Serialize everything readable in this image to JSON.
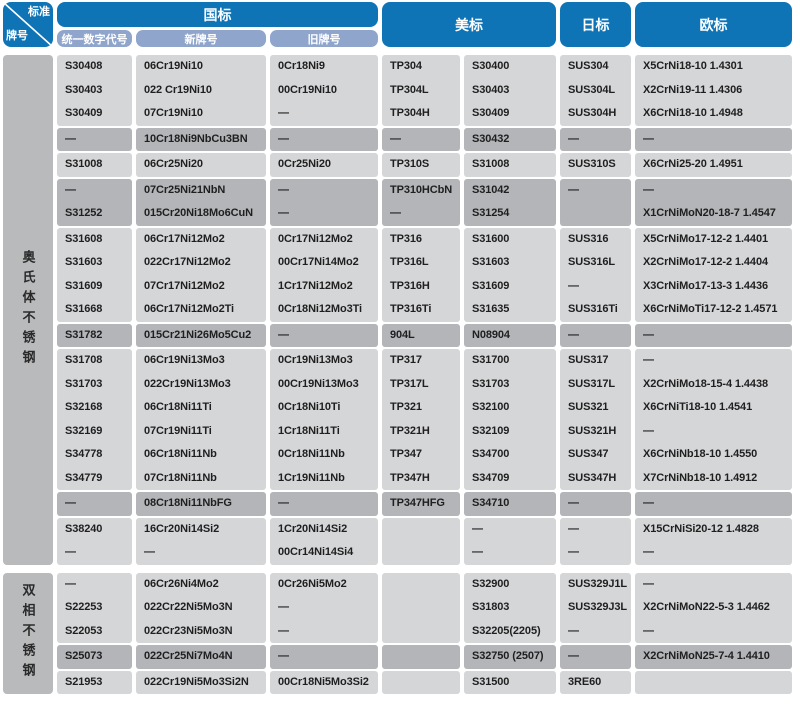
{
  "table": {
    "corner": {
      "top": "标准",
      "bottom": "牌号"
    },
    "group_headers": [
      {
        "label": "国标"
      },
      {
        "label": "美标"
      },
      {
        "label": "日标"
      },
      {
        "label": "欧标"
      }
    ],
    "sub_headers": [
      "统一数字代号",
      "新牌号",
      "旧牌号"
    ],
    "colors": {
      "header_blue": "#0e74b6",
      "subheader_blue": "#8fa5cc",
      "row_light": "#d5d6d8",
      "row_dark": "#b3b5b8",
      "label_gray": "#b8babc",
      "text": "#1f1f1f"
    },
    "sections": [
      {
        "label": "奥氏体不锈钢",
        "groups": [
          {
            "shade": "light",
            "rows": [
              [
                "S30408",
                "06Cr19Ni10",
                "0Cr18Ni9",
                "TP304",
                "S30400",
                "SUS304",
                "X5CrNi18-10 1.4301"
              ],
              [
                "S30403",
                "022 Cr19Ni10",
                "00Cr19Ni10",
                "TP304L",
                "S30403",
                "SUS304L",
                "X2CrNi19-11 1.4306"
              ],
              [
                "S30409",
                "07Cr19Ni10",
                "—",
                "TP304H",
                "S30409",
                "SUS304H",
                "X6CrNi18-10 1.4948"
              ]
            ]
          },
          {
            "shade": "dark",
            "rows": [
              [
                "—",
                "10Cr18Ni9NbCu3BN",
                "—",
                "—",
                "S30432",
                "—",
                "—"
              ]
            ]
          },
          {
            "shade": "light",
            "rows": [
              [
                "S31008",
                "06Cr25Ni20",
                "0Cr25Ni20",
                "TP310S",
                "S31008",
                "SUS310S",
                "X6CrNi25-20 1.4951"
              ]
            ]
          },
          {
            "shade": "dark",
            "rows": [
              [
                "—",
                "07Cr25Ni21NbN",
                "—",
                "TP310HCbN",
                "S31042",
                "—",
                "—"
              ],
              [
                "S31252",
                "015Cr20Ni18Mo6CuN",
                "—",
                "—",
                "S31254",
                "",
                "X1CrNiMoN20-18-7 1.4547"
              ]
            ]
          },
          {
            "shade": "light",
            "rows": [
              [
                "S31608",
                "06Cr17Ni12Mo2",
                "0Cr17Ni12Mo2",
                "TP316",
                "S31600",
                "SUS316",
                "X5CrNiMo17-12-2 1.4401"
              ],
              [
                "S31603",
                "022Cr17Ni12Mo2",
                "00Cr17Ni14Mo2",
                "TP316L",
                "S31603",
                "SUS316L",
                "X2CrNiMo17-12-2 1.4404"
              ],
              [
                "S31609",
                "07Cr17Ni12Mo2",
                "1Cr17Ni12Mo2",
                "TP316H",
                "S31609",
                "—",
                "X3CrNiMo17-13-3 1.4436"
              ],
              [
                "S31668",
                "06Cr17Ni12Mo2Ti",
                "0Cr18Ni12Mo3Ti",
                "TP316Ti",
                "S31635",
                "SUS316Ti",
                "X6CrNiMoTi17-12-2 1.4571"
              ]
            ]
          },
          {
            "shade": "dark",
            "rows": [
              [
                "S31782",
                "015Cr21Ni26Mo5Cu2",
                "—",
                "904L",
                "N08904",
                "—",
                "—"
              ]
            ]
          },
          {
            "shade": "light",
            "rows": [
              [
                "S31708",
                "06Cr19Ni13Mo3",
                "0Cr19Ni13Mo3",
                "TP317",
                "S31700",
                "SUS317",
                "—"
              ],
              [
                "S31703",
                "022Cr19Ni13Mo3",
                "00Cr19Ni13Mo3",
                "TP317L",
                "S31703",
                "SUS317L",
                "X2CrNiMo18-15-4 1.4438"
              ],
              [
                "S32168",
                "06Cr18Ni11Ti",
                "0Cr18Ni10Ti",
                "TP321",
                "S32100",
                "SUS321",
                "X6CrNiTi18-10 1.4541"
              ],
              [
                "S32169",
                "07Cr19Ni11Ti",
                "1Cr18Ni11Ti",
                "TP321H",
                "S32109",
                "SUS321H",
                "—"
              ],
              [
                "S34778",
                "06Cr18Ni11Nb",
                "0Cr18Ni11Nb",
                "TP347",
                "S34700",
                "SUS347",
                "X6CrNiNb18-10 1.4550"
              ],
              [
                "S34779",
                "07Cr18Ni11Nb",
                "1Cr19Ni11Nb",
                "TP347H",
                "S34709",
                "SUS347H",
                "X7CrNiNb18-10 1.4912"
              ]
            ]
          },
          {
            "shade": "dark",
            "rows": [
              [
                "—",
                "08Cr18Ni11NbFG",
                "—",
                "TP347HFG",
                "S34710",
                "—",
                "—"
              ]
            ]
          },
          {
            "shade": "light",
            "rows": [
              [
                "S38240",
                "16Cr20Ni14Si2",
                "1Cr20Ni14Si2",
                "",
                "—",
                "—",
                "X15CrNiSi20-12 1.4828"
              ],
              [
                "—",
                "—",
                "00Cr14Ni14Si4",
                "",
                "—",
                "—",
                "—"
              ]
            ]
          }
        ]
      },
      {
        "label": "双相不锈钢",
        "groups": [
          {
            "shade": "light",
            "rows": [
              [
                "—",
                "06Cr26Ni4Mo2",
                "0Cr26Ni5Mo2",
                "",
                "S32900",
                "SUS329J1L",
                "—"
              ],
              [
                "S22253",
                "022Cr22Ni5Mo3N",
                "—",
                "",
                "S31803",
                "SUS329J3L",
                "X2CrNiMoN22-5-3 1.4462"
              ],
              [
                "S22053",
                "022Cr23Ni5Mo3N",
                "—",
                "",
                "S32205(2205)",
                "—",
                "—"
              ]
            ]
          },
          {
            "shade": "dark",
            "rows": [
              [
                "S25073",
                "022Cr25Ni7Mo4N",
                "—",
                "",
                "S32750 (2507)",
                "—",
                "X2CrNiMoN25-7-4 1.4410"
              ]
            ]
          },
          {
            "shade": "light",
            "rows": [
              [
                "S21953",
                "022Cr19Ni5Mo3Si2N",
                "00Cr18Ni5Mo3Si2",
                "",
                "S31500",
                "3RE60",
                ""
              ]
            ]
          }
        ]
      }
    ]
  }
}
